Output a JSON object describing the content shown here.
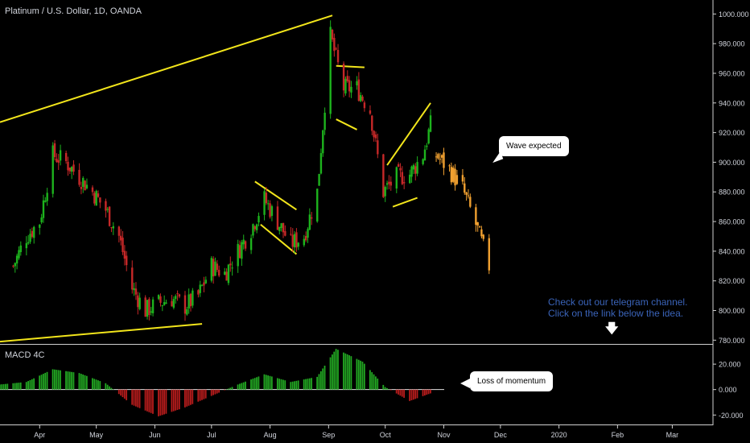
{
  "header": {
    "symbol_title": "Platinum / U.S. Dollar, 1D, OANDA"
  },
  "indicator": {
    "title": "MACD 4C"
  },
  "annotations": {
    "wave": "Wave expected",
    "momentum": "Loss of momentum",
    "promo_line1": "Check out our telegram channel.",
    "promo_line2": "Click on the link below the idea.",
    "arrow_icon": "down-arrow-icon"
  },
  "colors": {
    "up": "#26a69a",
    "up_green": "#1db31d",
    "down": "#c62828",
    "projection": "#f0a030",
    "trendline": "#f2e51b",
    "macd_pos": "#22a822",
    "macd_neg": "#b71c1c",
    "promo": "#3a63b8"
  },
  "chart_data": [
    {
      "type": "candlestick",
      "title": "Platinum / U.S. Dollar, 1D, OANDA",
      "x_tick_labels": [
        "Apr",
        "May",
        "Jun",
        "Jul",
        "Aug",
        "Sep",
        "Oct",
        "Nov",
        "Dec",
        "2020",
        "Feb",
        "Mar"
      ],
      "y_tick_labels": [
        "1000.000",
        "980.000",
        "960.000",
        "940.000",
        "920.000",
        "900.000",
        "880.000",
        "860.000",
        "840.000",
        "820.000",
        "800.000",
        "780.000"
      ],
      "ylim": [
        778,
        1004
      ],
      "grid": false,
      "price_path": [
        [
          "2019-03-18",
          830
        ],
        [
          "2019-03-25",
          850
        ],
        [
          "2019-04-01",
          860
        ],
        [
          "2019-04-08",
          905
        ],
        [
          "2019-04-15",
          900
        ],
        [
          "2019-04-22",
          890
        ],
        [
          "2019-04-29",
          880
        ],
        [
          "2019-05-06",
          868
        ],
        [
          "2019-05-13",
          850
        ],
        [
          "2019-05-20",
          815
        ],
        [
          "2019-05-27",
          800
        ],
        [
          "2019-06-03",
          805
        ],
        [
          "2019-06-10",
          808
        ],
        [
          "2019-06-17",
          803
        ],
        [
          "2019-06-24",
          810
        ],
        [
          "2019-07-01",
          830
        ],
        [
          "2019-07-08",
          825
        ],
        [
          "2019-07-15",
          840
        ],
        [
          "2019-07-22",
          855
        ],
        [
          "2019-07-29",
          875
        ],
        [
          "2019-08-05",
          860
        ],
        [
          "2019-08-12",
          845
        ],
        [
          "2019-08-19",
          850
        ],
        [
          "2019-08-26",
          880
        ],
        [
          "2019-09-02",
          985
        ],
        [
          "2019-09-09",
          950
        ],
        [
          "2019-09-16",
          950
        ],
        [
          "2019-09-23",
          935
        ],
        [
          "2019-09-30",
          880
        ],
        [
          "2019-10-07",
          890
        ],
        [
          "2019-10-14",
          892
        ],
        [
          "2019-10-21",
          905
        ],
        [
          "2019-10-25",
          925
        ]
      ],
      "projection": [
        [
          "2019-10-28",
          905
        ],
        [
          "2019-11-04",
          895
        ],
        [
          "2019-11-11",
          882
        ],
        [
          "2019-11-18",
          858
        ],
        [
          "2019-11-25",
          830
        ]
      ],
      "trendlines": [
        {
          "from": [
            "2019-03-11",
            927
          ],
          "to": [
            "2019-09-03",
            999
          ]
        },
        {
          "from": [
            "2019-03-11",
            779
          ],
          "to": [
            "2019-06-26",
            791
          ]
        },
        {
          "from": [
            "2019-07-24",
            887
          ],
          "to": [
            "2019-08-15",
            868
          ]
        },
        {
          "from": [
            "2019-07-27",
            858
          ],
          "to": [
            "2019-08-15",
            838
          ]
        },
        {
          "from": [
            "2019-09-05",
            965
          ],
          "to": [
            "2019-09-20",
            964
          ]
        },
        {
          "from": [
            "2019-09-05",
            929
          ],
          "to": [
            "2019-09-16",
            922
          ]
        },
        {
          "from": [
            "2019-10-02",
            898
          ],
          "to": [
            "2019-10-25",
            940
          ]
        },
        {
          "from": [
            "2019-10-05",
            870
          ],
          "to": [
            "2019-10-18",
            876
          ]
        }
      ]
    },
    {
      "type": "bar",
      "title": "MACD 4C",
      "y_tick_labels": [
        "20.000",
        "0.000",
        "-20.000"
      ],
      "ylim": [
        -23,
        34
      ],
      "histogram_path": [
        [
          "2019-03-11",
          4
        ],
        [
          "2019-03-25",
          6
        ],
        [
          "2019-04-08",
          16
        ],
        [
          "2019-04-22",
          13
        ],
        [
          "2019-05-06",
          5
        ],
        [
          "2019-05-20",
          -12
        ],
        [
          "2019-06-03",
          -21
        ],
        [
          "2019-06-17",
          -14
        ],
        [
          "2019-07-01",
          -5
        ],
        [
          "2019-07-15",
          4
        ],
        [
          "2019-07-29",
          12
        ],
        [
          "2019-08-12",
          6
        ],
        [
          "2019-08-26",
          10
        ],
        [
          "2019-09-05",
          32
        ],
        [
          "2019-09-19",
          22
        ],
        [
          "2019-10-01",
          2
        ],
        [
          "2019-10-14",
          -9
        ],
        [
          "2019-10-25",
          -3
        ]
      ]
    }
  ]
}
